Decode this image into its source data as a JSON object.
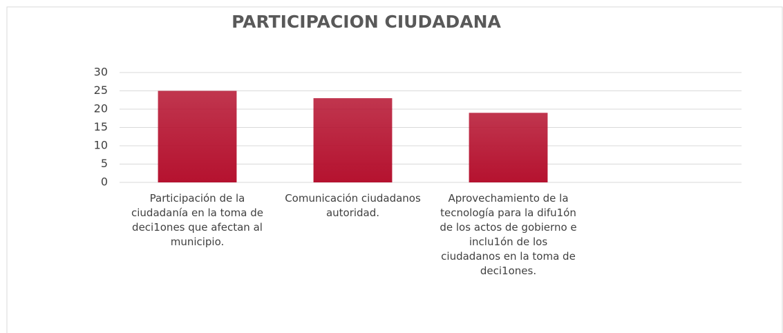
{
  "chart_data": {
    "type": "bar",
    "title": "PARTICIPACION CIUDADANA",
    "categories": [
      "Participación de la ciudadanía en la toma de deci1ones que afectan al municipio.",
      "Comunicación ciudadanos autoridad.",
      "Aprovechamiento de la tecnología para la difu1ón de los actos de gobierno e inclu1ón de los ciudadanos en la toma de deci1ones.",
      null
    ],
    "values": [
      25,
      23,
      19,
      null
    ],
    "color": "#b5122f",
    "ylim": [
      0,
      30
    ],
    "yticks": [
      0,
      5,
      10,
      15,
      20,
      25,
      30
    ],
    "grid": true
  }
}
